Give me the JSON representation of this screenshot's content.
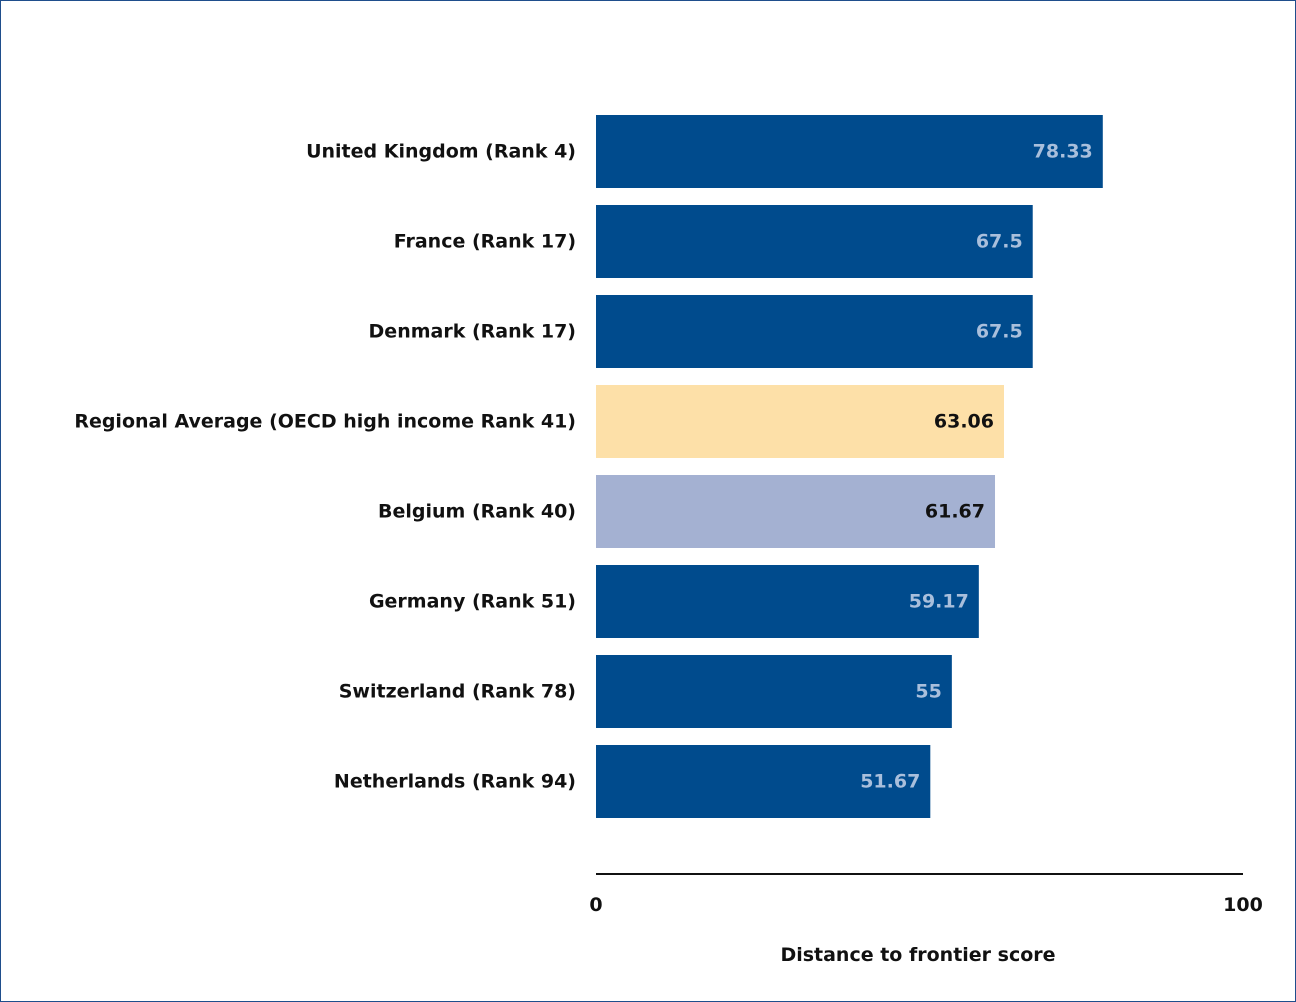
{
  "chart_data": {
    "type": "bar",
    "orientation": "horizontal",
    "categories": [
      "United Kingdom (Rank 4)",
      "France (Rank 17)",
      "Denmark (Rank 17)",
      "Regional Average (OECD high income Rank 41)",
      "Belgium (Rank 40)",
      "Germany (Rank 51)",
      "Switzerland (Rank 78)",
      "Netherlands (Rank 94)"
    ],
    "values": [
      78.33,
      67.5,
      67.5,
      63.06,
      61.67,
      59.17,
      55,
      51.67
    ],
    "value_labels": [
      "78.33",
      "67.5",
      "67.5",
      "63.06",
      "61.67",
      "59.17",
      "55",
      "51.67"
    ],
    "bar_colors": [
      "#004b8d",
      "#004b8d",
      "#004b8d",
      "#fde0a8",
      "#a4b1d2",
      "#004b8d",
      "#004b8d",
      "#004b8d"
    ],
    "label_colors": [
      "#a9bfdc",
      "#a9bfdc",
      "#a9bfdc",
      "#111111",
      "#111111",
      "#a9bfdc",
      "#a9bfdc",
      "#a9bfdc"
    ],
    "xlim": [
      0,
      100
    ],
    "x_ticks": [
      "0",
      "100"
    ],
    "xlabel": "Distance to frontier score",
    "title": "",
    "grid": false,
    "legend": "none"
  }
}
